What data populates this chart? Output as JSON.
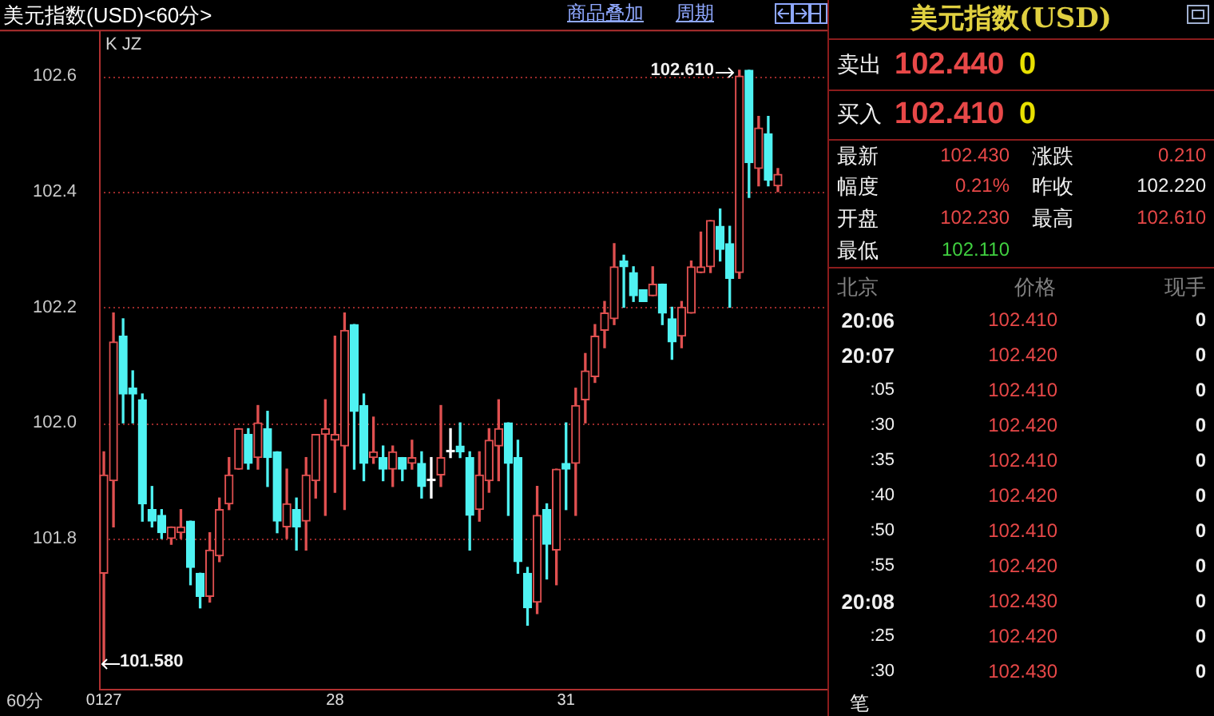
{
  "chart_data": {
    "type": "candlestick",
    "title": "美元指数(USD)<60分>",
    "categories": [
      "0127",
      null,
      null,
      null,
      null,
      null,
      null,
      null,
      null,
      null,
      null,
      null,
      null,
      null,
      null,
      null,
      null,
      null,
      null,
      null,
      null,
      null,
      null,
      null,
      "28",
      null,
      null,
      null,
      null,
      null,
      null,
      null,
      null,
      null,
      null,
      null,
      null,
      null,
      null,
      null,
      null,
      null,
      null,
      null,
      null,
      null,
      null,
      null,
      "31",
      null,
      null,
      null,
      null,
      null,
      null,
      null,
      null,
      null,
      null,
      null,
      null,
      null,
      null,
      null,
      null,
      null,
      null,
      null,
      null,
      null,
      null
    ],
    "ohlc": [
      [
        101.74,
        101.95,
        101.58,
        101.91
      ],
      [
        101.9,
        102.19,
        101.82,
        102.14
      ],
      [
        102.15,
        102.18,
        102.0,
        102.05
      ],
      [
        102.06,
        102.09,
        102.0,
        102.05
      ],
      [
        102.04,
        102.05,
        101.83,
        101.86
      ],
      [
        101.85,
        101.89,
        101.82,
        101.83
      ],
      [
        101.84,
        101.85,
        101.8,
        101.81
      ],
      [
        101.8,
        101.82,
        101.79,
        101.82
      ],
      [
        101.81,
        101.85,
        101.8,
        101.82
      ],
      [
        101.83,
        101.83,
        101.72,
        101.75
      ],
      [
        101.74,
        101.74,
        101.68,
        101.7
      ],
      [
        101.7,
        101.81,
        101.69,
        101.78
      ],
      [
        101.77,
        101.87,
        101.76,
        101.85
      ],
      [
        101.86,
        101.94,
        101.85,
        101.91
      ],
      [
        101.92,
        101.99,
        101.92,
        101.99
      ],
      [
        101.98,
        101.99,
        101.92,
        101.93
      ],
      [
        101.94,
        102.03,
        101.92,
        102.0
      ],
      [
        101.99,
        102.02,
        101.89,
        101.94
      ],
      [
        101.95,
        101.95,
        101.81,
        101.83
      ],
      [
        101.82,
        101.92,
        101.8,
        101.86
      ],
      [
        101.85,
        101.87,
        101.78,
        101.82
      ],
      [
        101.83,
        101.94,
        101.78,
        101.91
      ],
      [
        101.9,
        101.98,
        101.87,
        101.98
      ],
      [
        101.98,
        102.04,
        101.84,
        101.99
      ],
      [
        101.97,
        102.15,
        101.88,
        101.98
      ],
      [
        101.96,
        102.19,
        101.85,
        102.16
      ],
      [
        102.17,
        102.17,
        101.92,
        102.02
      ],
      [
        102.03,
        102.05,
        101.9,
        101.93
      ],
      [
        101.94,
        102.01,
        101.93,
        101.95
      ],
      [
        101.94,
        101.96,
        101.9,
        101.92
      ],
      [
        101.92,
        101.96,
        101.89,
        101.95
      ],
      [
        101.94,
        101.94,
        101.9,
        101.92
      ],
      [
        101.93,
        101.97,
        101.92,
        101.94
      ],
      [
        101.93,
        101.95,
        101.87,
        101.89
      ],
      [
        101.9,
        101.94,
        101.87,
        101.9
      ],
      [
        101.91,
        102.03,
        101.89,
        101.94
      ],
      [
        101.95,
        101.99,
        101.94,
        101.95
      ],
      [
        101.96,
        102.0,
        101.94,
        101.95
      ],
      [
        101.94,
        101.95,
        101.78,
        101.84
      ],
      [
        101.85,
        101.95,
        101.83,
        101.91
      ],
      [
        101.9,
        101.99,
        101.88,
        101.97
      ],
      [
        101.96,
        102.04,
        101.9,
        101.99
      ],
      [
        102.0,
        102.0,
        101.84,
        101.93
      ],
      [
        101.94,
        101.97,
        101.74,
        101.76
      ],
      [
        101.74,
        101.75,
        101.65,
        101.68
      ],
      [
        101.69,
        101.89,
        101.67,
        101.84
      ],
      [
        101.85,
        101.86,
        101.73,
        101.79
      ],
      [
        101.78,
        101.92,
        101.72,
        101.92
      ],
      [
        101.93,
        102.0,
        101.85,
        101.92
      ],
      [
        101.93,
        102.06,
        101.84,
        102.03
      ],
      [
        102.04,
        102.12,
        102.0,
        102.09
      ],
      [
        102.08,
        102.17,
        102.07,
        102.15
      ],
      [
        102.16,
        102.21,
        102.13,
        102.19
      ],
      [
        102.18,
        102.31,
        102.17,
        102.27
      ],
      [
        102.28,
        102.29,
        102.2,
        102.27
      ],
      [
        102.26,
        102.27,
        102.21,
        102.22
      ],
      [
        102.23,
        102.23,
        102.21,
        102.21
      ],
      [
        102.22,
        102.27,
        102.22,
        102.24
      ],
      [
        102.24,
        102.24,
        102.17,
        102.19
      ],
      [
        102.18,
        102.2,
        102.11,
        102.14
      ],
      [
        102.15,
        102.21,
        102.13,
        102.2
      ],
      [
        102.19,
        102.28,
        102.19,
        102.27
      ],
      [
        102.26,
        102.33,
        102.26,
        102.27
      ],
      [
        102.27,
        102.35,
        102.26,
        102.35
      ],
      [
        102.34,
        102.37,
        102.28,
        102.3
      ],
      [
        102.31,
        102.34,
        102.2,
        102.25
      ],
      [
        102.26,
        102.61,
        102.25,
        102.6
      ],
      [
        102.61,
        102.61,
        102.39,
        102.45
      ],
      [
        102.44,
        102.53,
        102.41,
        102.51
      ],
      [
        102.5,
        102.53,
        102.41,
        102.42
      ],
      [
        102.41,
        102.44,
        102.4,
        102.43
      ]
    ],
    "colors": [
      "#e05050",
      "#e05050",
      "#4ff2f2",
      "#4ff2f2",
      "#4ff2f2",
      "#4ff2f2",
      "#4ff2f2",
      "#e05050",
      "#e05050",
      "#4ff2f2",
      "#4ff2f2",
      "#e05050",
      "#e05050",
      "#e05050",
      "#e05050",
      "#4ff2f2",
      "#e05050",
      "#4ff2f2",
      "#4ff2f2",
      "#e05050",
      "#4ff2f2",
      "#e05050",
      "#e05050",
      "#e05050",
      "#e05050",
      "#e05050",
      "#4ff2f2",
      "#4ff2f2",
      "#e05050",
      "#4ff2f2",
      "#e05050",
      "#4ff2f2",
      "#e05050",
      "#4ff2f2",
      "#ffffff",
      "#e05050",
      "#ffffff",
      "#4ff2f2",
      "#4ff2f2",
      "#e05050",
      "#e05050",
      "#e05050",
      "#4ff2f2",
      "#4ff2f2",
      "#4ff2f2",
      "#e05050",
      "#4ff2f2",
      "#e05050",
      "#4ff2f2",
      "#e05050",
      "#e05050",
      "#e05050",
      "#e05050",
      "#e05050",
      "#4ff2f2",
      "#4ff2f2",
      "#4ff2f2",
      "#e05050",
      "#4ff2f2",
      "#4ff2f2",
      "#e05050",
      "#e05050",
      "#e05050",
      "#e05050",
      "#4ff2f2",
      "#4ff2f2",
      "#e05050",
      "#4ff2f2",
      "#e05050",
      "#4ff2f2",
      "#e05050"
    ],
    "ylim": [
      101.54,
      102.68
    ],
    "yticks": [
      101.8,
      {
        "value": 102,
        "label": "102.0"
      },
      102.2,
      102.4,
      102.6
    ],
    "grid": "y",
    "annotations": [
      "K JZ",
      "60分",
      "商品叠加",
      "周期",
      "美元指数(USD)",
      "卖出",
      "102.440",
      "0",
      "买入",
      "102.410",
      "0",
      "最新",
      "102.430",
      "涨跌",
      "0.210",
      "幅度",
      "0.21%",
      "昨收",
      "102.220",
      "开盘",
      "102.230",
      "最高",
      "102.610",
      "最低",
      "102.110",
      "北京",
      "价格",
      "现手",
      "20:06",
      "102.410",
      "0",
      "20:07",
      "102.420",
      "0",
      ":05",
      "102.410",
      "0",
      ":30",
      "102.420",
      "0",
      ":35",
      "102.410",
      "0",
      ":40",
      "102.420",
      "0",
      ":50",
      "102.410",
      "0",
      ":55",
      "102.420",
      "0",
      "20:08",
      "102.430",
      "0",
      ":25",
      "102.420",
      "0",
      ":30",
      "102.430",
      "0",
      "笔",
      "102.610",
      "101.580"
    ]
  }
}
